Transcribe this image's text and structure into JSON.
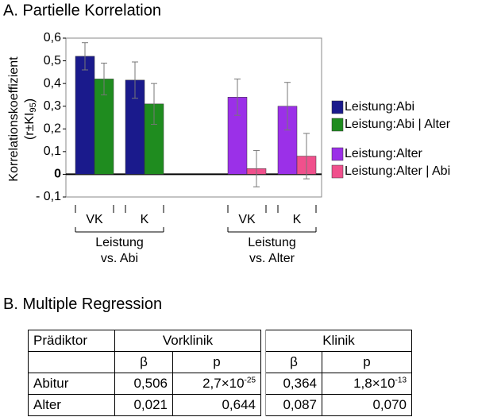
{
  "chart_data": {
    "type": "bar",
    "title": "A. Partielle Korrelation",
    "y_label": [
      "Korrelationskoeffizient",
      "(r±KI",
      "95",
      ")"
    ],
    "categories": [
      "VK",
      "K",
      "VK",
      "K"
    ],
    "groups": [
      [
        "Leistung",
        "vs. Abi"
      ],
      [
        "Leistung",
        "vs. Alter"
      ]
    ],
    "series": [
      {
        "name": "Leistung:Abi",
        "color": "#1a1a8c",
        "values": [
          0.52,
          0.415,
          null,
          null
        ],
        "errors": [
          0.06,
          0.08,
          null,
          null
        ]
      },
      {
        "name": "Leistung:Abi | Alter",
        "color": "#1f8c1f",
        "values": [
          0.42,
          0.31,
          null,
          null
        ],
        "errors": [
          0.07,
          0.09,
          null,
          null
        ]
      },
      {
        "name": "Leistung:Alter",
        "color": "#9b30e8",
        "values": [
          null,
          null,
          0.34,
          0.3
        ],
        "errors": [
          null,
          null,
          0.08,
          0.105
        ]
      },
      {
        "name": "Leistung:Alter | Abi",
        "color": "#f0508c",
        "values": [
          null,
          null,
          0.025,
          0.08
        ],
        "errors": [
          null,
          null,
          0.08,
          0.1
        ]
      }
    ],
    "ylim": [
      -0.1,
      0.6
    ],
    "yticks": [
      {
        "value": -0.1,
        "label": "- 0,1"
      },
      0,
      {
        "value": 0.1,
        "label": "0,1"
      },
      {
        "value": 0.2,
        "label": "0,2"
      },
      {
        "value": 0.3,
        "label": "0,3"
      },
      {
        "value": 0.4,
        "label": "0,4"
      },
      {
        "value": 0.5,
        "label": "0,5"
      },
      {
        "value": 0.6,
        "label": "0,6"
      }
    ],
    "legend": "right"
  },
  "table": {
    "title": "B. Multiple Regression",
    "header": [
      "Prädiktor",
      "Vorklinik",
      "Klinik"
    ],
    "subheader": [
      "β",
      "p",
      "β",
      "p"
    ],
    "rows": [
      [
        "Abitur",
        "0,506",
        {
          "base": "2,7×10",
          "sup": "-25"
        },
        "0,364",
        {
          "base": "1,8×10",
          "sup": "-13"
        }
      ],
      [
        "Alter",
        "0,021",
        "0,644",
        "0,087",
        "0,070"
      ]
    ]
  }
}
